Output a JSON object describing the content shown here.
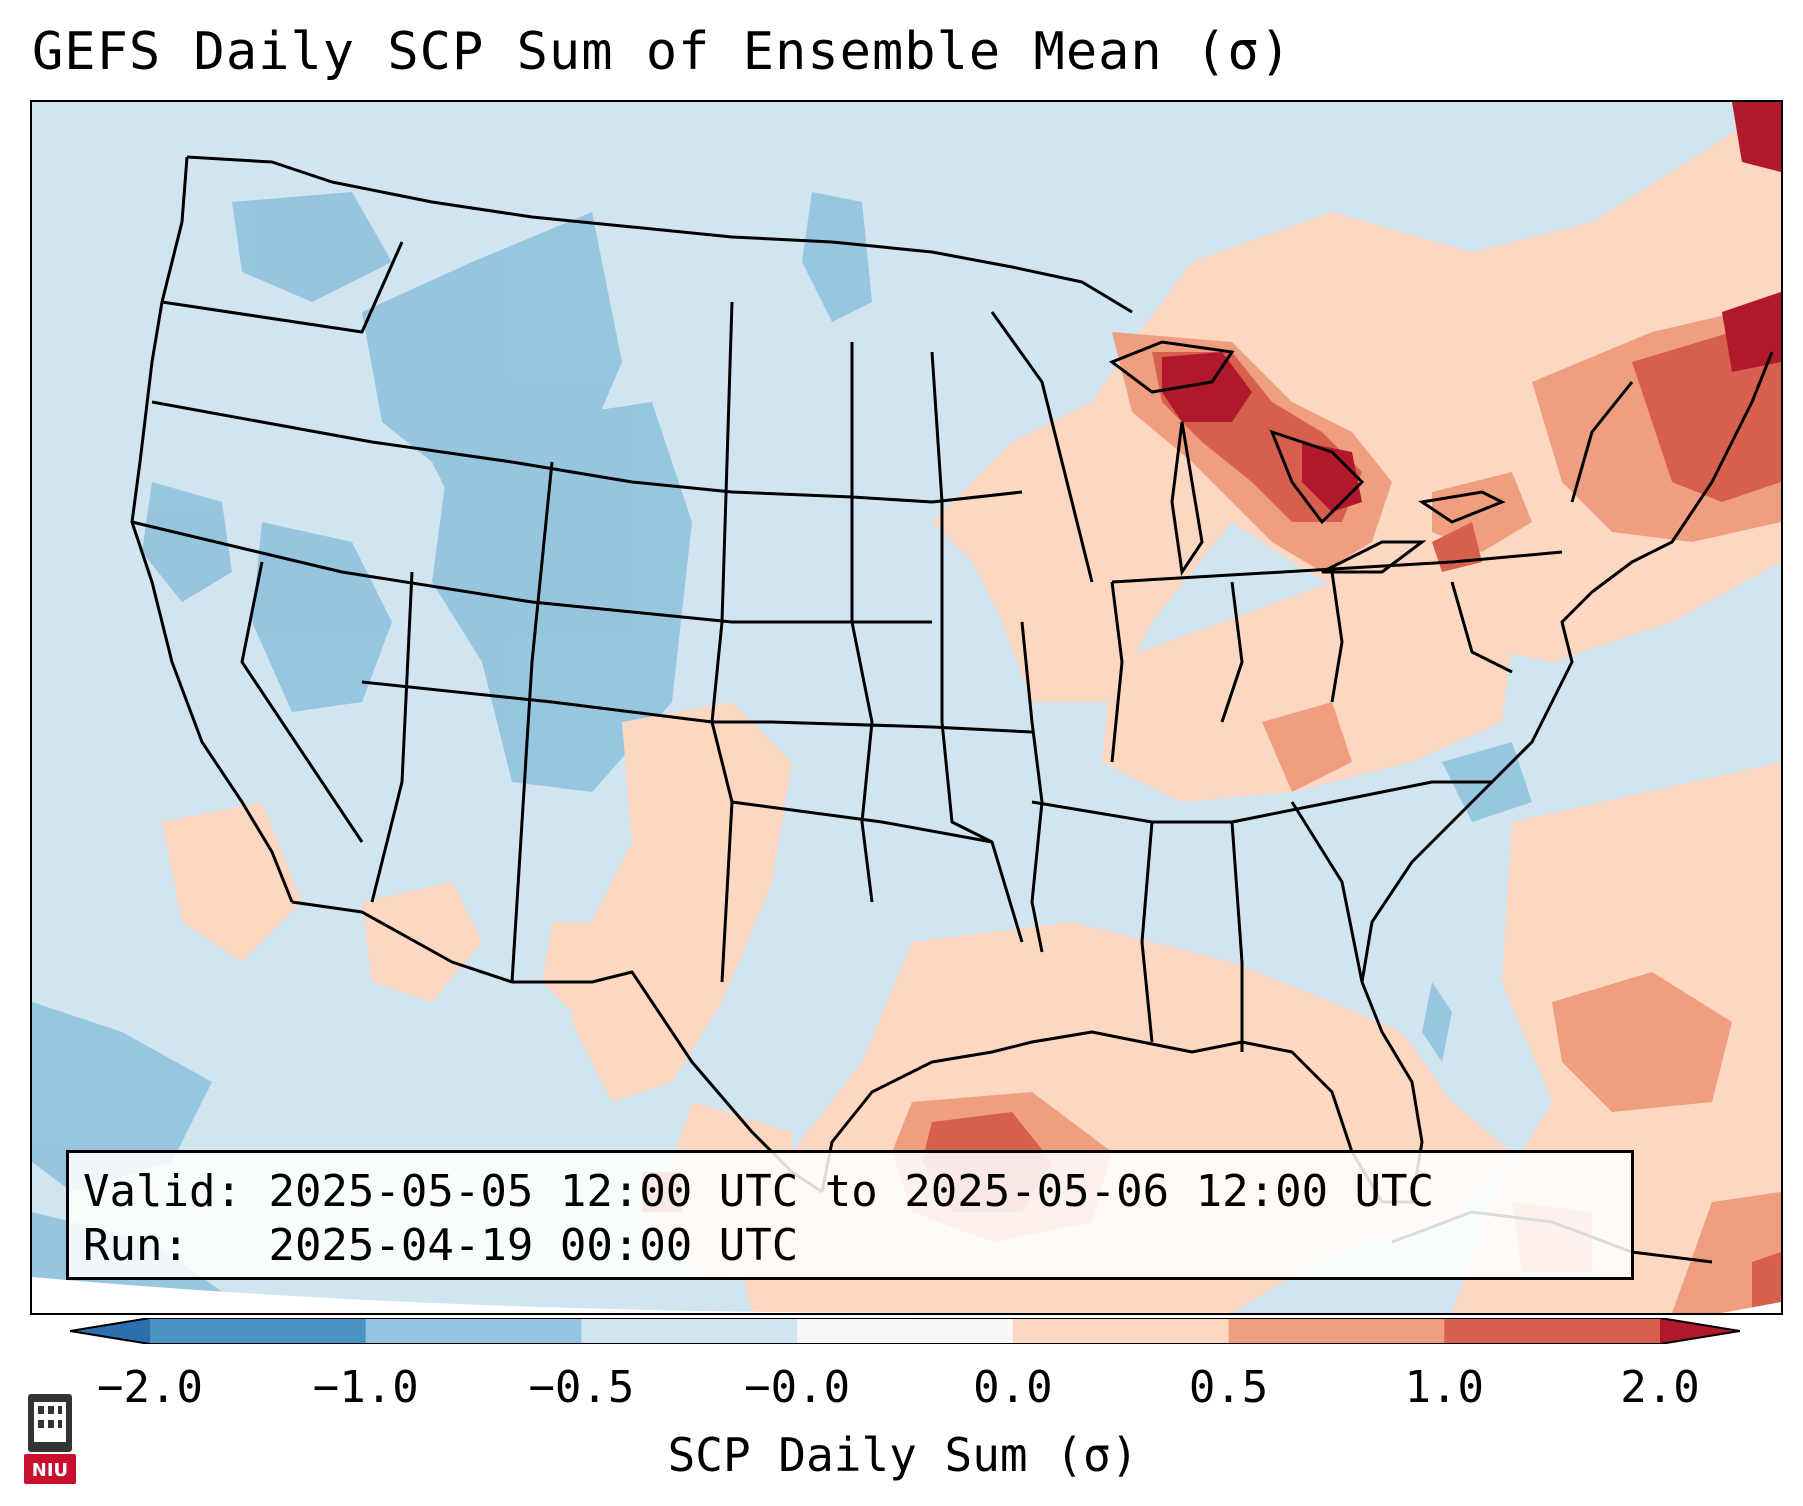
{
  "title": "GEFS Daily SCP Sum of Ensemble Mean (σ)",
  "info": {
    "valid_label": "Valid:",
    "valid_value": "2025-05-05 12:00 UTC to 2025-05-06 12:00 UTC",
    "run_label": "Run:",
    "run_value": "2025-04-19 00:00 UTC"
  },
  "colorbar": {
    "label": "SCP Daily Sum (σ)",
    "ticks": [
      "−2.0",
      "−1.0",
      "−0.5",
      "−0.0",
      "0.0",
      "0.5",
      "1.0",
      "2.0"
    ],
    "colors": [
      "#2b6faf",
      "#4a93c4",
      "#94c4df",
      "#d1e5f0",
      "#f7f7f7",
      "#fcd7c1",
      "#ef9f80",
      "#d6604d",
      "#b2182b"
    ],
    "extend": "both"
  },
  "logo": {
    "text": "NIU",
    "icon": "niu-seal-icon"
  },
  "map": {
    "projection": "lambert-conformal",
    "region": "Contiguous United States",
    "palette": {
      "ocean": "#d1e5f0",
      "neg_mid": "#94c4df",
      "pos_light": "#fcd7c1",
      "pos_mid": "#ef9f80",
      "pos_strong": "#d6604d",
      "pos_max": "#b2182b",
      "boundary": "#000000"
    }
  }
}
